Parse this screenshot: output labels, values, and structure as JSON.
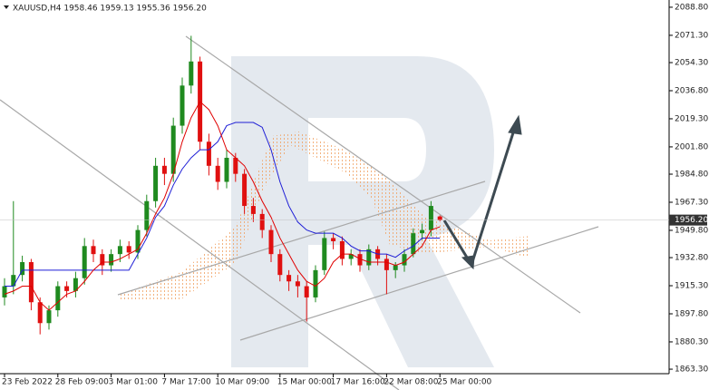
{
  "chart_data": {
    "type": "candlestick",
    "title": "XAUUSD,H4  1958.46 1959.13 1955.36 1956.20",
    "categories": [
      "23 Feb 2022",
      null,
      null,
      null,
      null,
      null,
      "28 Feb 09:00",
      null,
      null,
      null,
      null,
      null,
      "3 Mar 01:00",
      null,
      null,
      null,
      null,
      null,
      "7 Mar 17:00",
      null,
      null,
      null,
      null,
      null,
      "10 Mar 09:00",
      null,
      null,
      null,
      null,
      null,
      null,
      "15 Mar 00:00",
      null,
      null,
      null,
      null,
      null,
      "17 Mar 16:00",
      null,
      null,
      null,
      null,
      null,
      "22 Mar 08:00",
      null,
      null,
      null,
      null,
      null,
      "25 Mar 00:00"
    ],
    "open": [
      1908,
      1915,
      1922,
      1930,
      1905,
      1892,
      1900,
      1915,
      1912,
      1920,
      1940,
      1935,
      1928,
      1935,
      1940,
      1936,
      1950,
      1968,
      1990,
      1985,
      2015,
      2040,
      2055,
      2005,
      1990,
      1980,
      1995,
      1985,
      1965,
      1960,
      1950,
      1935,
      1922,
      1918,
      1915,
      1908,
      1925,
      1945,
      1943,
      1932,
      1935,
      1928,
      1938,
      1932,
      1925,
      1928,
      1935,
      1948,
      1950,
      1958.46
    ],
    "high": [
      1920,
      1968,
      1934,
      1932,
      1908,
      1903,
      1918,
      1918,
      1924,
      1945,
      1944,
      1938,
      1938,
      1944,
      1943,
      1953,
      1972,
      1995,
      1995,
      2020,
      2045,
      2071,
      2058,
      2010,
      1995,
      2000,
      1998,
      1988,
      1970,
      1963,
      1953,
      1938,
      1925,
      1922,
      1918,
      1928,
      1949,
      1948,
      1946,
      1938,
      1938,
      1941,
      1940,
      1935,
      1930,
      1938,
      1951,
      1954,
      1968,
      1959.13
    ],
    "low": [
      1903,
      1910,
      1918,
      1900,
      1885,
      1888,
      1896,
      1908,
      1908,
      1916,
      1930,
      1922,
      1924,
      1930,
      1932,
      1932,
      1946,
      1964,
      1978,
      1980,
      2010,
      2035,
      2000,
      1984,
      1975,
      1976,
      1980,
      1960,
      1955,
      1945,
      1930,
      1918,
      1912,
      1908,
      1893,
      1905,
      1922,
      1938,
      1928,
      1928,
      1924,
      1925,
      1928,
      1910,
      1920,
      1924,
      1933,
      1944,
      1946,
      1955.36
    ],
    "close": [
      1915,
      1922,
      1930,
      1905,
      1892,
      1900,
      1915,
      1912,
      1920,
      1940,
      1935,
      1928,
      1935,
      1940,
      1936,
      1950,
      1968,
      1990,
      1985,
      2015,
      2040,
      2055,
      2005,
      1990,
      1980,
      1995,
      1985,
      1965,
      1960,
      1950,
      1935,
      1922,
      1918,
      1915,
      1908,
      1925,
      1945,
      1943,
      1932,
      1935,
      1928,
      1938,
      1932,
      1925,
      1928,
      1935,
      1948,
      1950,
      1965,
      1956.2
    ],
    "up_color": "#1f8a1f",
    "down_color": "#e01010",
    "overlays": [
      {
        "color": "#1f1fd6",
        "values": [
          1915,
          1915,
          1925,
          1925,
          1925,
          1925,
          1925,
          1925,
          1925,
          1925,
          1925,
          1925,
          1925,
          1925,
          1925,
          1935,
          1945,
          1958,
          1965,
          1978,
          1988,
          1995,
          2000,
          2000,
          2005,
          2015,
          2017,
          2017,
          2017,
          2014,
          2000,
          1980,
          1965,
          1955,
          1950,
          1948,
          1948,
          1948,
          1945,
          1940,
          1937,
          1937,
          1935,
          1935,
          1933,
          1937,
          1940,
          1945,
          1945,
          1945
        ]
      },
      {
        "color": "#e00000",
        "values": [
          1910,
          1912,
          1915,
          1915,
          1905,
          1900,
          1905,
          1910,
          1912,
          1918,
          1925,
          1930,
          1930,
          1932,
          1935,
          1938,
          1948,
          1960,
          1970,
          1985,
          2005,
          2020,
          2030,
          2025,
          2015,
          2000,
          1995,
          1990,
          1980,
          1968,
          1958,
          1945,
          1935,
          1925,
          1918,
          1915,
          1920,
          1930,
          1935,
          1935,
          1932,
          1930,
          1930,
          1930,
          1928,
          1930,
          1935,
          1940,
          1950,
          1952
        ]
      }
    ],
    "last_price": {
      "value": 1956.2,
      "label": "1956.20"
    },
    "ylim": [
      1860.5,
      2093.3
    ],
    "yticks": [
      {
        "value": 2088.8,
        "label": "2088.80"
      },
      {
        "value": 2071.3,
        "label": "2071.30"
      },
      {
        "value": 2054.3,
        "label": "2054.30"
      },
      {
        "value": 2036.8,
        "label": "2036.80"
      },
      {
        "value": 2019.3,
        "label": "2019.30"
      },
      {
        "value": 2001.8,
        "label": "2001.80"
      },
      {
        "value": 1984.8,
        "label": "1984.80"
      },
      {
        "value": 1967.3,
        "label": "1967.30"
      },
      {
        "value": 1949.8,
        "label": "1949.80"
      },
      {
        "value": 1932.8,
        "label": "1932.80"
      },
      {
        "value": 1915.3,
        "label": "1915.30"
      },
      {
        "value": 1897.8,
        "label": "1897.80"
      },
      {
        "value": 1880.3,
        "label": "1880.30"
      },
      {
        "value": 1863.3,
        "label": "1863.30"
      }
    ]
  }
}
